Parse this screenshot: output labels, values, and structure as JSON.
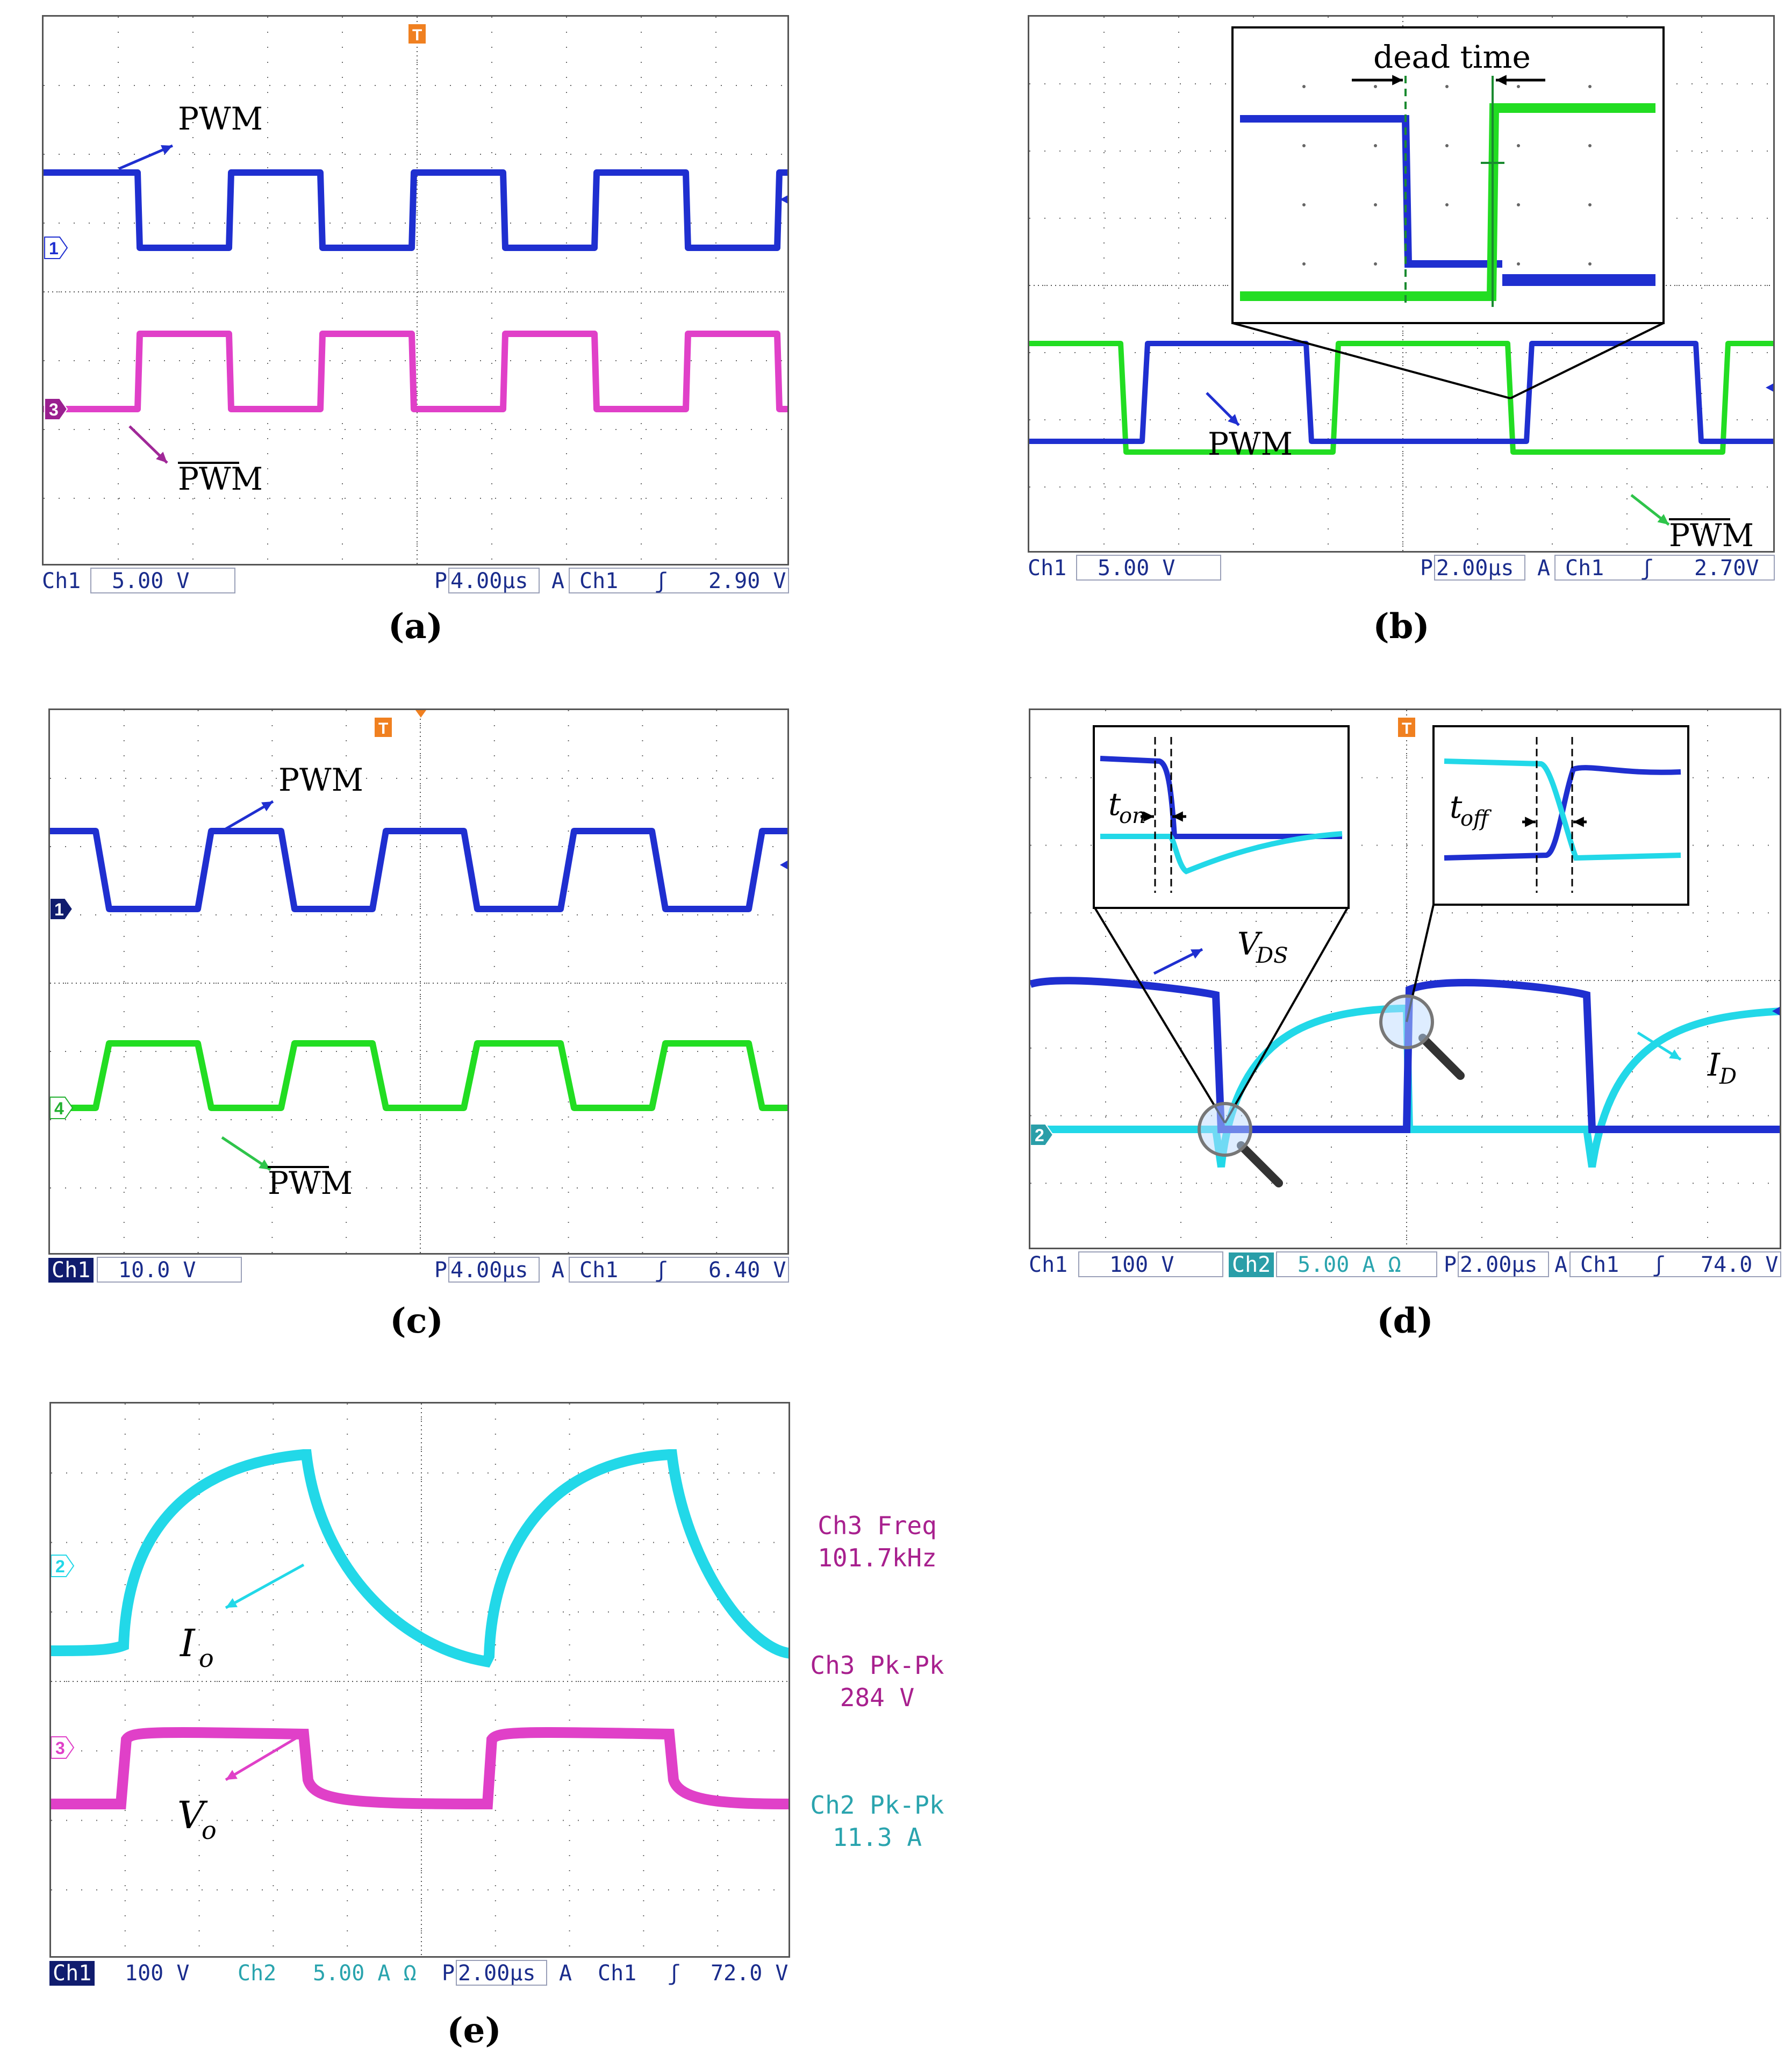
{
  "chart_data": [
    {
      "type": "line",
      "panel": "(a)",
      "traces": [
        {
          "name": "PWM",
          "channel": "1",
          "color": "#1f2fd0",
          "levels": [
            "high",
            "low",
            "high",
            "low",
            "high",
            "low",
            "high",
            "low",
            "high"
          ],
          "transition_times_div": [
            1.95,
            3.9,
            5.85,
            7.8,
            9.75,
            11.7,
            13.65,
            15.6
          ]
        },
        {
          "name": "PWM_bar",
          "channel": "3",
          "color": "#e040c8",
          "levels": [
            "low",
            "high",
            "low",
            "high",
            "low",
            "high",
            "low",
            "high",
            "low"
          ],
          "transition_times_div": [
            2.0,
            3.95,
            5.9,
            7.85,
            9.8,
            11.75,
            13.7,
            15.65
          ]
        }
      ],
      "status": {
        "ch1": "Ch1",
        "ch1_scale": "5.00 V",
        "timebase_label": "P",
        "timebase": "4.00µs",
        "trigger_label": "A",
        "trigger_ch": "Ch1",
        "trigger_level": "2.90 V"
      },
      "channel_markers": [
        "1",
        "3"
      ],
      "annotations": [
        "PWM",
        "PWM"
      ]
    },
    {
      "type": "line",
      "panel": "(b)",
      "traces": [
        {
          "name": "PWM",
          "color": "#1f2fd0"
        },
        {
          "name": "PWM_bar",
          "color": "#22dd22"
        }
      ],
      "status": {
        "ch1": "Ch1",
        "ch1_scale": "5.00 V",
        "timebase_label": "P",
        "timebase": "2.00µs",
        "trigger_label": "A",
        "trigger_ch": "Ch1",
        "trigger_level": "2.70V"
      },
      "annotations": [
        "dead time",
        "PWM",
        "PWM"
      ]
    },
    {
      "type": "line",
      "panel": "(c)",
      "traces": [
        {
          "name": "PWM",
          "channel": "1",
          "color": "#1f2fd0"
        },
        {
          "name": "PWM_bar",
          "channel": "4",
          "color": "#22dd22"
        }
      ],
      "status": {
        "ch1": "Ch1",
        "ch1_scale": "10.0 V",
        "timebase_label": "P",
        "timebase": "4.00µs",
        "trigger_label": "A",
        "trigger_ch": "Ch1",
        "trigger_level": "6.40 V"
      },
      "channel_markers": [
        "1",
        "4"
      ],
      "annotations": [
        "PWM",
        "PWM"
      ]
    },
    {
      "type": "line",
      "panel": "(d)",
      "traces": [
        {
          "name": "V_DS",
          "color": "#1f2fd0"
        },
        {
          "name": "I_D",
          "channel": "2",
          "color": "#22d8e8"
        }
      ],
      "status": {
        "ch1": "Ch1",
        "ch1_scale": "100 V",
        "ch2": "Ch2",
        "ch2_scale": "5.00 A Ω",
        "timebase_label": "P",
        "timebase": "2.00µs",
        "trigger_label": "A",
        "trigger_ch": "Ch1",
        "trigger_level": "74.0 V"
      },
      "channel_markers": [
        "2"
      ],
      "annotations": [
        "t",
        "on",
        "t",
        "off",
        "V",
        "DS",
        "I",
        "D"
      ]
    },
    {
      "type": "line",
      "panel": "(e)",
      "traces": [
        {
          "name": "I_o",
          "channel": "2",
          "color": "#22d8e8"
        },
        {
          "name": "V_o",
          "channel": "3",
          "color": "#e040c8"
        }
      ],
      "status": {
        "ch1": "Ch1",
        "ch1_scale": "100 V",
        "ch2": "Ch2",
        "ch2_scale": "5.00 A Ω",
        "timebase_label": "P",
        "timebase": "2.00µs",
        "trigger_label": "A",
        "trigger_ch": "Ch1",
        "trigger_level": "72.0 V"
      },
      "channel_markers": [
        "2",
        "3"
      ],
      "measurements": [
        {
          "label": "Ch3 Freq",
          "value": "101.7kHz",
          "color": "#a8208e"
        },
        {
          "label": "Ch3 Pk-Pk",
          "value": "284 V",
          "color": "#a8208e"
        },
        {
          "label": "Ch2 Pk-Pk",
          "value": "11.3 A",
          "color": "#2aa4ae"
        }
      ],
      "annotations": [
        "I",
        "o",
        "V",
        "o"
      ]
    }
  ],
  "captions": {
    "a": "(a)",
    "b": "(b)",
    "c": "(c)",
    "d": "(d)",
    "e": "(e)"
  },
  "labels": {
    "pwm": "PWM",
    "dead_time": "dead time",
    "t": "t",
    "on": "on",
    "off": "off",
    "V": "V",
    "DS": "DS",
    "I": "I",
    "D": "D",
    "o": "o"
  },
  "colors": {
    "blue": "#1f2fd0",
    "magenta": "#e040c8",
    "green": "#22dd22",
    "cyan": "#22d8e8",
    "statusText": "#1a2c8c"
  }
}
